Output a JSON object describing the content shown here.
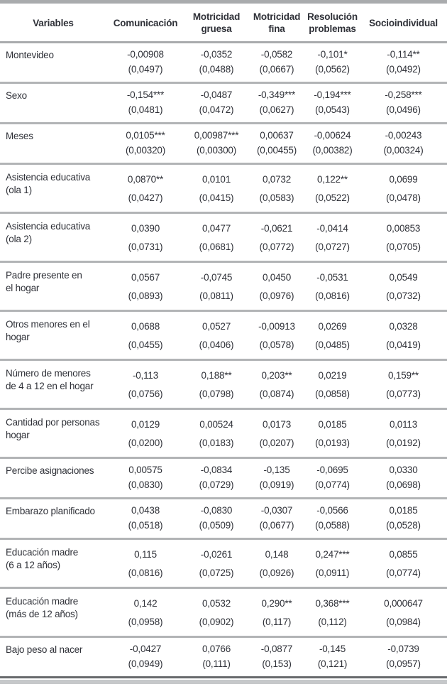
{
  "colors": {
    "text": "#2f3138",
    "top_band": "#a9abad",
    "header_rule": "#a9abad",
    "group_divider": "#b2b4b6",
    "bottom_rule_dark": "#67696c",
    "bottom_band": "#c6c8ca"
  },
  "table": {
    "columns": [
      "Variables",
      "Comunicación",
      "Motricidad\ngruesa",
      "Motricidad\nfina",
      "Resolución\nproblemas",
      "Socioindividual"
    ],
    "rows": [
      {
        "label": "Montevideo",
        "coef": [
          "-0,00908",
          "-0,0352",
          "-0,0582",
          "-0,101*",
          "-0,114**"
        ],
        "se": [
          "(0,0497)",
          "(0,0488)",
          "(0,0667)",
          "(0,0562)",
          "(0,0492)"
        ]
      },
      {
        "label": "Sexo",
        "coef": [
          "-0,154***",
          "-0,0487",
          "-0,349***",
          "-0,194***",
          "-0,258***"
        ],
        "se": [
          "(0,0481)",
          "(0,0472)",
          "(0,0627)",
          "(0,0543)",
          "(0,0496)"
        ]
      },
      {
        "label": "Meses",
        "coef": [
          "0,0105***",
          "0,00987***",
          "0,00637",
          "-0,00624",
          "-0,00243"
        ],
        "se": [
          "(0,00320)",
          "(0,00300)",
          "(0,00455)",
          "(0,00382)",
          "(0,00324)"
        ]
      },
      {
        "label": "Asistencia educativa\n(ola 1)",
        "coef": [
          "0,0870**",
          "0,0101",
          "0,0732",
          "0,122**",
          "0,0699"
        ],
        "se": [
          "(0,0427)",
          "(0,0415)",
          "(0,0583)",
          "(0,0522)",
          "(0,0478)"
        ]
      },
      {
        "label": "Asistencia educativa\n(ola 2)",
        "coef": [
          "0,0390",
          "0,0477",
          "-0,0621",
          "-0,0414",
          "0,00853"
        ],
        "se": [
          "(0,0731)",
          "(0,0681)",
          "(0,0772)",
          "(0,0727)",
          "(0,0705)"
        ]
      },
      {
        "label": "Padre presente en\nel hogar",
        "coef": [
          "0,0567",
          "-0,0745",
          "0,0450",
          "-0,0531",
          "0,0549"
        ],
        "se": [
          "(0,0893)",
          "(0,0811)",
          "(0,0976)",
          "(0,0816)",
          "(0,0732)"
        ]
      },
      {
        "label": "Otros menores en el\nhogar",
        "coef": [
          "0,0688",
          "0,0527",
          "-0,00913",
          "0,0269",
          "0,0328"
        ],
        "se": [
          "(0,0455)",
          "(0,0406)",
          "(0,0578)",
          "(0,0485)",
          "(0,0419)"
        ]
      },
      {
        "label": "Número de menores\nde 4 a 12 en el hogar",
        "coef": [
          "-0,113",
          "0,188**",
          "0,203**",
          "0,0219",
          "0,159**"
        ],
        "se": [
          "(0,0756)",
          "(0,0798)",
          "(0,0874)",
          "(0,0858)",
          "(0,0773)"
        ]
      },
      {
        "label": "Cantidad por personas\nhogar",
        "coef": [
          "0,0129",
          "0,00524",
          "0,0173",
          "0,0185",
          "0,0113"
        ],
        "se": [
          "(0,0200)",
          "(0,0183)",
          "(0,0207)",
          "(0,0193)",
          "(0,0192)"
        ]
      },
      {
        "label": "Percibe asignaciones",
        "coef": [
          "0,00575",
          "-0,0834",
          "-0,135",
          "-0,0695",
          "0,0330"
        ],
        "se": [
          "(0,0830)",
          "(0,0729)",
          "(0,0919)",
          "(0,0774)",
          "(0,0698)"
        ]
      },
      {
        "label": "Embarazo planificado",
        "coef": [
          "0,0438",
          "-0,0830",
          "-0,0307",
          "-0,0566",
          "0,0185"
        ],
        "se": [
          "(0,0518)",
          "(0,0509)",
          "(0,0677)",
          "(0,0588)",
          "(0,0528)"
        ]
      },
      {
        "label": "Educación madre\n(6 a 12 años)",
        "coef": [
          "0,115",
          "-0,0261",
          "0,148",
          "0,247***",
          "0,0855"
        ],
        "se": [
          "(0,0816)",
          "(0,0725)",
          "(0,0926)",
          "(0,0911)",
          "(0,0774)"
        ]
      },
      {
        "label": "Educación madre\n(más de 12 años)",
        "coef": [
          "0,142",
          "0,0532",
          "0,290**",
          "0,368***",
          "0,000647"
        ],
        "se": [
          "(0,0958)",
          "(0,0902)",
          "(0,117)",
          "(0,112)",
          "(0,0984)"
        ]
      },
      {
        "label": "Bajo peso al nacer",
        "coef": [
          "-0,0427",
          "0,0766",
          "-0,0877",
          "-0,145",
          "-0,0739"
        ],
        "se": [
          "(0,0949)",
          "(0,111)",
          "(0,153)",
          "(0,121)",
          "(0,0957)"
        ]
      }
    ]
  }
}
